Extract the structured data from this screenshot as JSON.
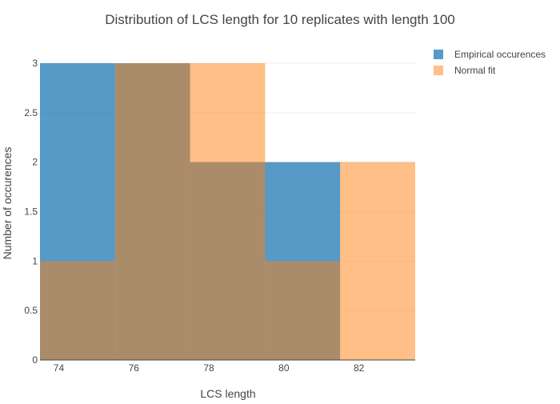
{
  "chart_data": {
    "type": "bar",
    "title": "Distribution of LCS length for 10 replicates with length 100",
    "xlabel": "LCS length",
    "ylabel": "Number of occurences",
    "xlim": [
      73.5,
      83.5
    ],
    "ylim": [
      0,
      3
    ],
    "x_ticks": [
      74,
      76,
      78,
      80,
      82
    ],
    "y_ticks": [
      0,
      0.5,
      1,
      1.5,
      2,
      2.5,
      3
    ],
    "grid": true,
    "legend_position": "top-right",
    "series": [
      {
        "name": "Empirical occurences",
        "color": "#1f77b4",
        "bins": [
          {
            "start": 73.5,
            "end": 75.5,
            "value": 3
          },
          {
            "start": 75.5,
            "end": 77.5,
            "value": 3
          },
          {
            "start": 77.5,
            "end": 79.5,
            "value": 2
          },
          {
            "start": 79.5,
            "end": 81.5,
            "value": 2
          },
          {
            "start": 81.5,
            "end": 83.5,
            "value": 0
          }
        ]
      },
      {
        "name": "Normal fit",
        "color": "#ff7f0e",
        "bins": [
          {
            "start": 73.5,
            "end": 75.5,
            "value": 1
          },
          {
            "start": 75.5,
            "end": 77.5,
            "value": 3
          },
          {
            "start": 77.5,
            "end": 79.5,
            "value": 3
          },
          {
            "start": 79.5,
            "end": 81.5,
            "value": 1
          },
          {
            "start": 81.5,
            "end": 83.5,
            "value": 2
          }
        ]
      }
    ]
  }
}
